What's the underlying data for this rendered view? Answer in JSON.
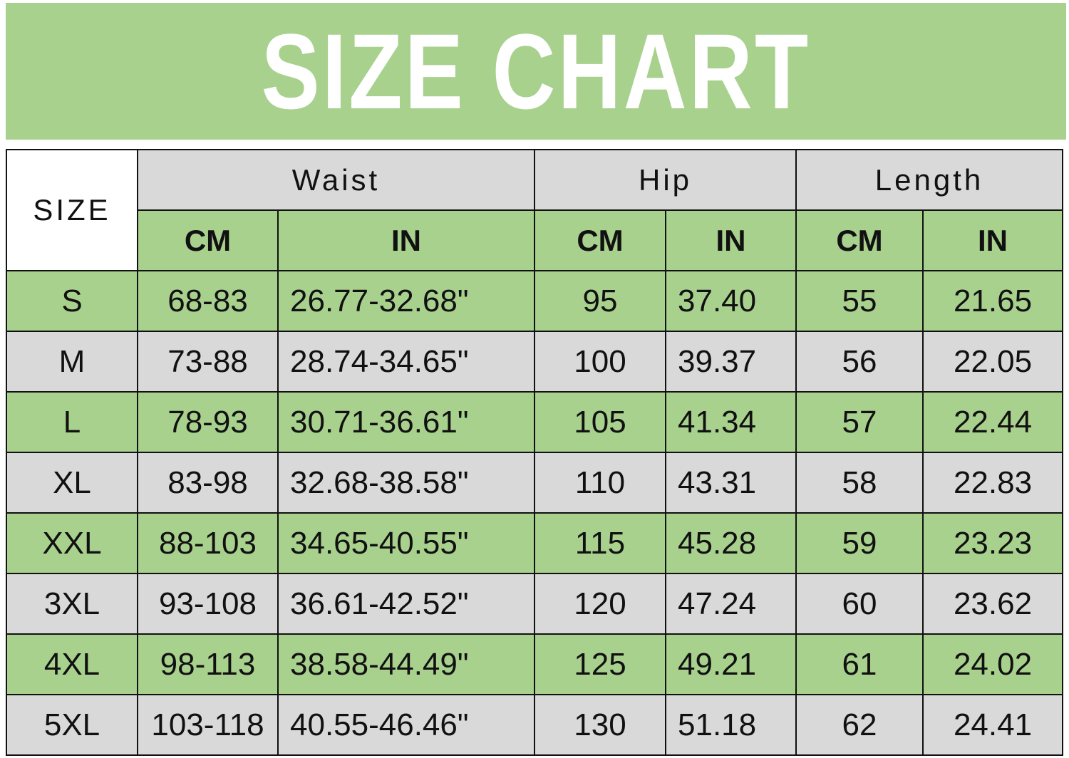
{
  "title": "SIZE CHART",
  "colors": {
    "green": "#a9d18e",
    "gray": "#d9d9d9",
    "title_text": "#ffffff"
  },
  "chart_data": {
    "type": "table",
    "title": "SIZE CHART",
    "size_header": "SIZE",
    "groups": [
      "Waist",
      "Hip",
      "Length"
    ],
    "units": [
      "CM",
      "IN",
      "CM",
      "IN",
      "CM",
      "IN"
    ],
    "rows": [
      {
        "size": "S",
        "cells": [
          "68-83",
          "26.77-32.68\"",
          "95",
          "37.40",
          "55",
          "21.65"
        ]
      },
      {
        "size": "M",
        "cells": [
          "73-88",
          "28.74-34.65\"",
          "100",
          "39.37",
          "56",
          "22.05"
        ]
      },
      {
        "size": "L",
        "cells": [
          "78-93",
          "30.71-36.61\"",
          "105",
          "41.34",
          "57",
          "22.44"
        ]
      },
      {
        "size": "XL",
        "cells": [
          "83-98",
          "32.68-38.58\"",
          "110",
          "43.31",
          "58",
          "22.83"
        ]
      },
      {
        "size": "XXL",
        "cells": [
          "88-103",
          "34.65-40.55\"",
          "115",
          "45.28",
          "59",
          "23.23"
        ]
      },
      {
        "size": "3XL",
        "cells": [
          "93-108",
          "36.61-42.52\"",
          "120",
          "47.24",
          "60",
          "23.62"
        ]
      },
      {
        "size": "4XL",
        "cells": [
          "98-113",
          "38.58-44.49\"",
          "125",
          "49.21",
          "61",
          "24.02"
        ]
      },
      {
        "size": "5XL",
        "cells": [
          "103-118",
          "40.55-46.46\"",
          "130",
          "51.18",
          "62",
          "24.41"
        ]
      }
    ]
  }
}
